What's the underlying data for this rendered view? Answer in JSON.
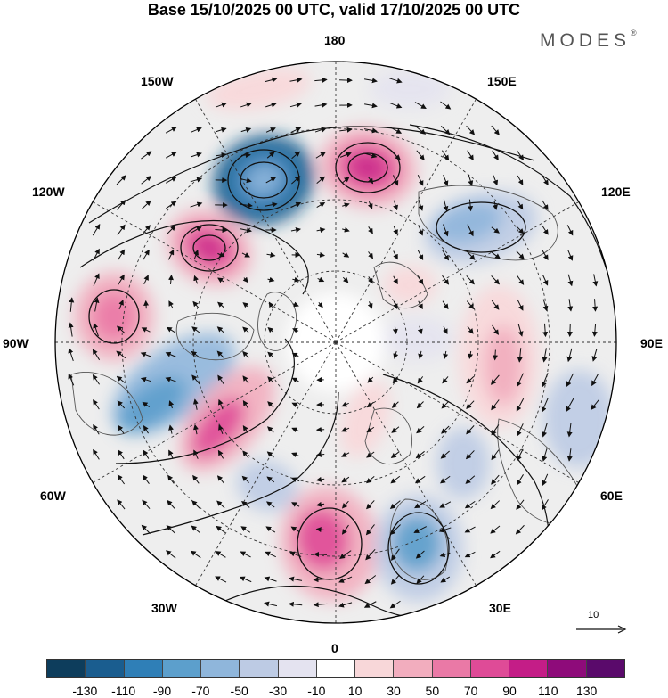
{
  "title": "Base 15/10/2025 00 UTC, valid 17/10/2025 00 UTC",
  "brand": {
    "name": "MODES",
    "mark": "®"
  },
  "map": {
    "projection": "north-polar-stereographic",
    "longitude_labels": {
      "180": "180",
      "150E": "150E",
      "120E": "120E",
      "90E": "90E",
      "60E": "60E",
      "30E": "30E",
      "0": "0",
      "30W": "30W",
      "60W": "60W",
      "90W": "90W",
      "120W": "120W",
      "150W": "150W"
    },
    "colors": {
      "land_outline": "#555555",
      "graticule": "#333333",
      "neutral": "#ffffff",
      "ocean_tint": "#efefef"
    }
  },
  "reference_vector": {
    "label": "10"
  },
  "colorbar": {
    "colors": [
      "#0d3d5c",
      "#1a5d8f",
      "#2f7fb7",
      "#5c9fcc",
      "#8fb6db",
      "#bdcbe4",
      "#e4e3f0",
      "#ffffff",
      "#f8d7d9",
      "#f2adbe",
      "#ea79a6",
      "#df4b97",
      "#c41d87",
      "#8e0b7a",
      "#5a0a6b"
    ],
    "tick_labels": [
      "-130",
      "-110",
      "-90",
      "-70",
      "-50",
      "-30",
      "-10",
      "10",
      "30",
      "50",
      "70",
      "90",
      "110",
      "130"
    ]
  }
}
